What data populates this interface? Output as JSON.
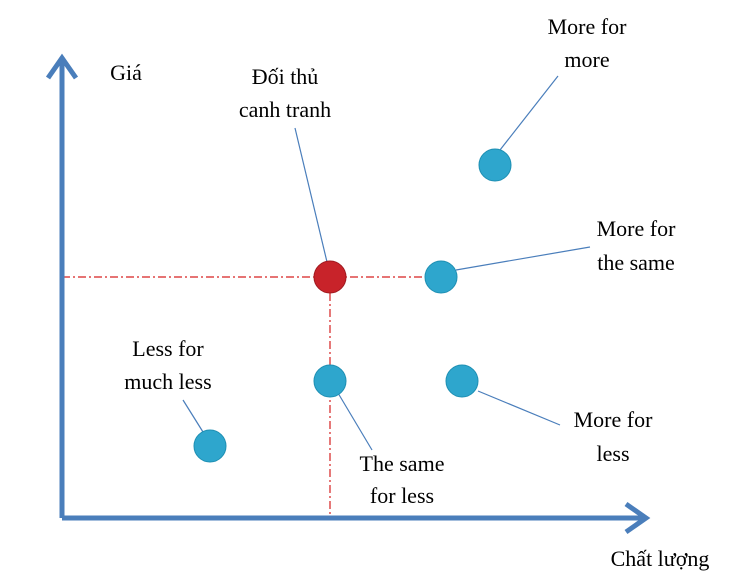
{
  "axes": {
    "y_label": "Giá",
    "x_label": "Chất lượng"
  },
  "nodes": [
    {
      "label": [
        "Đối thủ",
        "canh tranh"
      ]
    },
    {
      "label": [
        "More for",
        "more"
      ]
    },
    {
      "label": [
        "More for",
        "the same"
      ]
    },
    {
      "label": [
        "Less for",
        "much less"
      ]
    },
    {
      "label": [
        "The same",
        "for less"
      ]
    },
    {
      "label": [
        "More for",
        "less"
      ]
    }
  ]
}
